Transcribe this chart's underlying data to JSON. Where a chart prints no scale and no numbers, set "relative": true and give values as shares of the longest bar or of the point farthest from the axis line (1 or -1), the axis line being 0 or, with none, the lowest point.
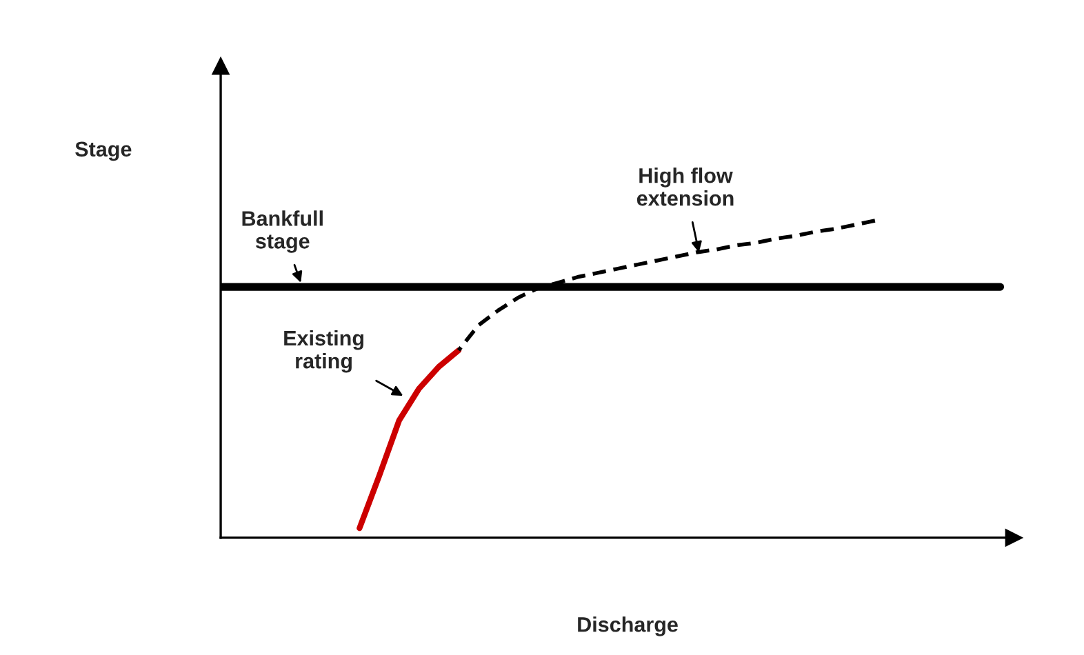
{
  "chart_data": {
    "type": "line",
    "relative": true,
    "xlabel": "Discharge",
    "categories": [
      null,
      null,
      null,
      null,
      null,
      null,
      null,
      null,
      null,
      null,
      null,
      null,
      null,
      null,
      null,
      null,
      null,
      null,
      null,
      null,
      null,
      null,
      null,
      null,
      null,
      null,
      null,
      null,
      null,
      null,
      null,
      null,
      null,
      null,
      null,
      null,
      null,
      null,
      null,
      null,
      null
    ],
    "series": [
      {
        "color": "#cc0000",
        "line_style": "solid",
        "values": [
          null,
          null,
          null,
          null,
          null,
          null,
          null,
          0.03,
          0.196,
          0.37,
          0.47,
          0.539,
          0.591,
          null,
          null,
          null,
          null,
          null,
          null,
          null,
          null,
          null,
          null,
          null,
          null,
          null,
          null,
          null,
          null,
          null,
          null,
          null,
          null,
          null,
          null,
          null,
          null,
          null,
          null,
          null,
          null
        ]
      },
      {
        "color": "#000000",
        "line_style": "dashed",
        "values": [
          null,
          null,
          null,
          null,
          null,
          null,
          null,
          null,
          null,
          null,
          null,
          null,
          0.591,
          0.67,
          0.717,
          0.757,
          0.787,
          0.804,
          0.822,
          0.835,
          0.848,
          0.861,
          0.874,
          0.887,
          0.9,
          0.909,
          0.922,
          0.93,
          0.943,
          0.952,
          0.965,
          0.974,
          0.987,
          1.0,
          null,
          null,
          null,
          null,
          null,
          null,
          null
        ]
      }
    ],
    "ref_lines": [
      {
        "axis": "y",
        "value": 0.791,
        "color": "#000000",
        "line_style": "solid"
      }
    ],
    "annotations": [
      "Stage",
      "Bankfull\nstage",
      "Existing\nrating",
      "High flow\nextension"
    ]
  }
}
